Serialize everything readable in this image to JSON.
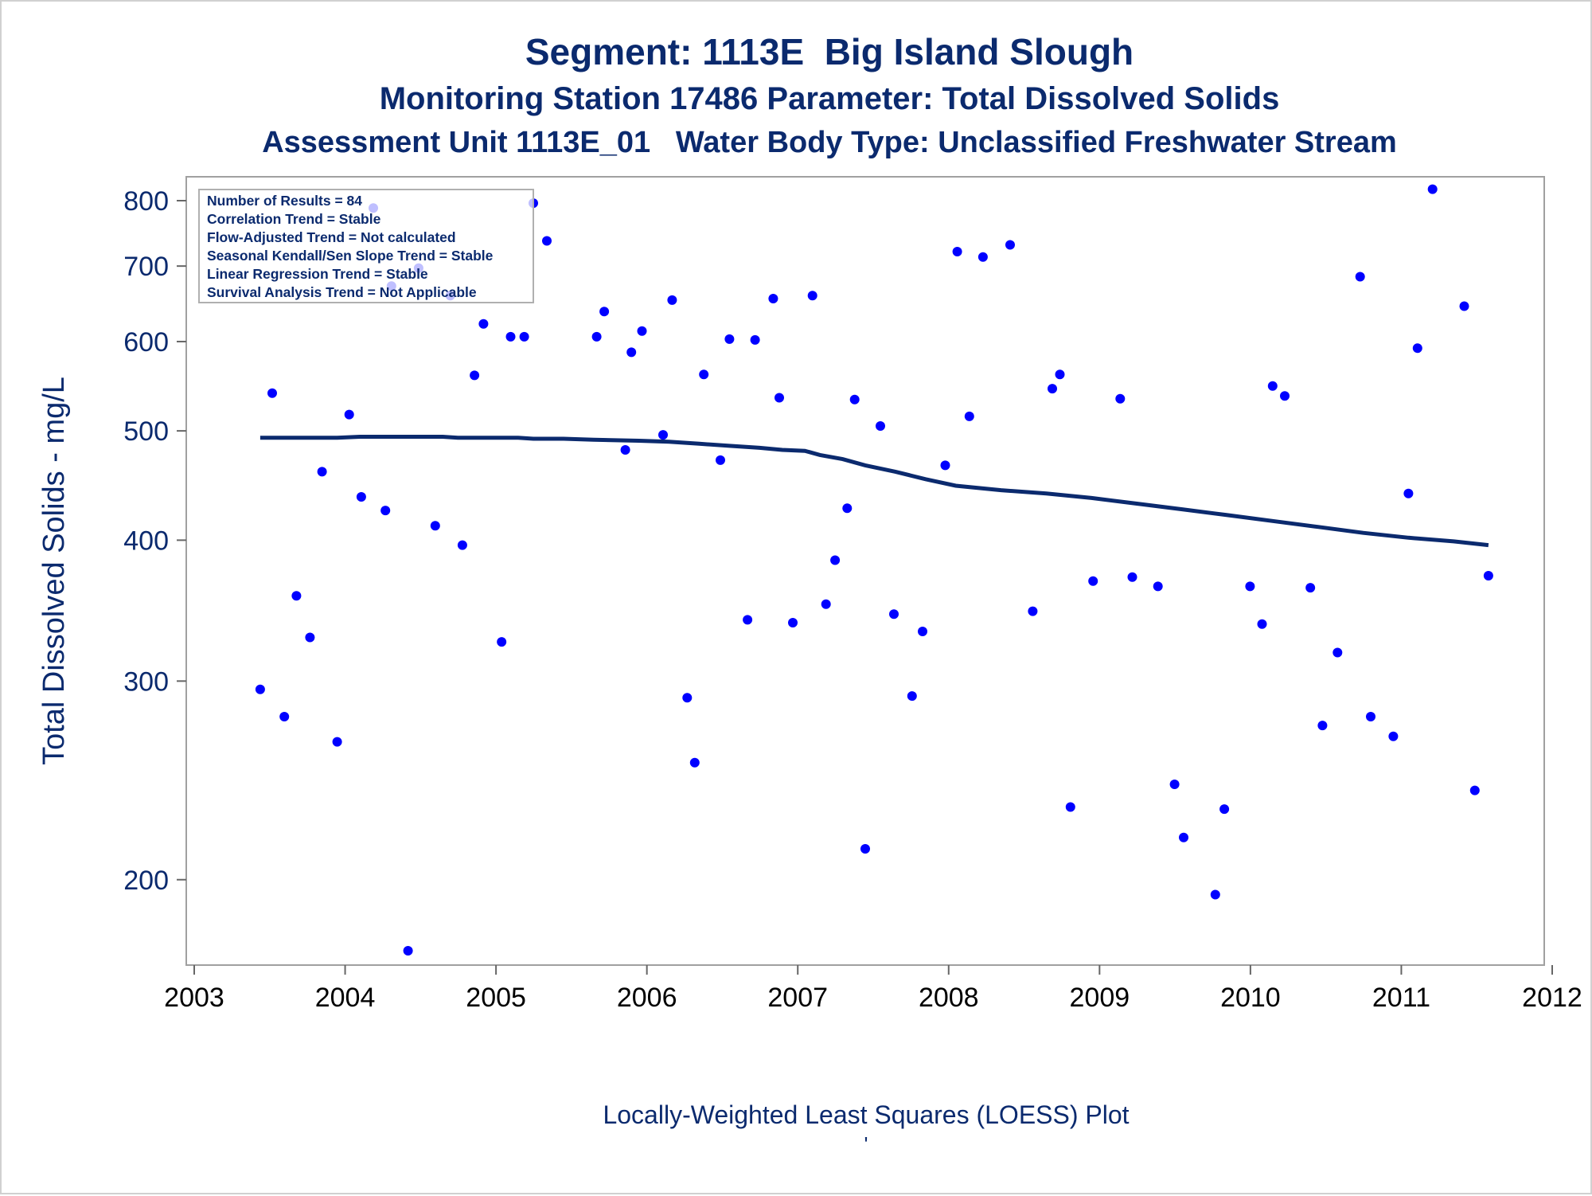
{
  "titles": {
    "line1": "Segment: 1113E  Big Island Slough",
    "line2": "Monitoring Station 17486 Parameter: Total Dissolved Solids",
    "line3": "Assessment Unit 1113E_01   Water Body Type: Unclassified Freshwater Stream"
  },
  "footnote": "Locally-Weighted Least Squares (LOESS) Plot",
  "footnote_mark": "'",
  "colors": {
    "title": "#0b2a6e",
    "points": "#0000ff",
    "loess_line": "#0b2a6e",
    "frame": "#a0a0a0"
  },
  "chart_data": {
    "type": "scatter",
    "xlabel": "",
    "ylabel": "Total Dissolved Solids - mg/L",
    "xlim": [
      2003,
      2012
    ],
    "ylim": [
      168,
      840
    ],
    "yscale": "log",
    "x_ticks": [
      2003,
      2004,
      2005,
      2006,
      2007,
      2008,
      2009,
      2010,
      2011,
      2012
    ],
    "y_ticks": [
      200,
      300,
      400,
      500,
      600,
      700,
      800
    ],
    "grid": false,
    "legend_box": [
      "Number of Results = 84",
      "Correlation Trend = Stable",
      "Flow-Adjusted Trend = Not calculated",
      "Seasonal Kendall/Sen Slope Trend = Stable",
      "Linear Regression Trend = Stable",
      "Survival Analysis Trend = Not Applicable"
    ],
    "legend_box_placement": "top-left",
    "points": [
      [
        2003.49,
        295
      ],
      [
        2003.57,
        540
      ],
      [
        2003.65,
        279
      ],
      [
        2003.73,
        357
      ],
      [
        2003.82,
        328
      ],
      [
        2003.9,
        460
      ],
      [
        2004.0,
        265
      ],
      [
        2004.08,
        517
      ],
      [
        2004.16,
        437
      ],
      [
        2004.24,
        788
      ],
      [
        2004.32,
        425
      ],
      [
        2004.36,
        672
      ],
      [
        2004.47,
        173
      ],
      [
        2004.54,
        697
      ],
      [
        2004.65,
        412
      ],
      [
        2004.75,
        659
      ],
      [
        2004.83,
        396
      ],
      [
        2004.91,
        560
      ],
      [
        2004.97,
        622
      ],
      [
        2005.09,
        325
      ],
      [
        2005.15,
        606
      ],
      [
        2005.24,
        606
      ],
      [
        2005.3,
        796
      ],
      [
        2005.39,
        737
      ],
      [
        2005.72,
        606
      ],
      [
        2005.77,
        638
      ],
      [
        2005.91,
        481
      ],
      [
        2005.95,
        587
      ],
      [
        2006.02,
        613
      ],
      [
        2006.16,
        496
      ],
      [
        2006.22,
        653
      ],
      [
        2006.32,
        290
      ],
      [
        2006.37,
        254
      ],
      [
        2006.43,
        561
      ],
      [
        2006.54,
        471
      ],
      [
        2006.6,
        603
      ],
      [
        2006.72,
        340
      ],
      [
        2006.77,
        602
      ],
      [
        2006.89,
        655
      ],
      [
        2006.93,
        535
      ],
      [
        2007.02,
        338
      ],
      [
        2007.15,
        659
      ],
      [
        2007.24,
        351
      ],
      [
        2007.3,
        384
      ],
      [
        2007.38,
        427
      ],
      [
        2007.43,
        533
      ],
      [
        2007.5,
        213
      ],
      [
        2007.6,
        505
      ],
      [
        2007.69,
        344
      ],
      [
        2007.81,
        291
      ],
      [
        2007.88,
        332
      ],
      [
        2008.03,
        466
      ],
      [
        2008.11,
        721
      ],
      [
        2008.19,
        515
      ],
      [
        2008.28,
        713
      ],
      [
        2008.46,
        731
      ],
      [
        2008.61,
        346
      ],
      [
        2008.74,
        545
      ],
      [
        2008.79,
        561
      ],
      [
        2008.86,
        232
      ],
      [
        2009.01,
        368
      ],
      [
        2009.19,
        534
      ],
      [
        2009.27,
        371
      ],
      [
        2009.44,
        364
      ],
      [
        2009.55,
        243
      ],
      [
        2009.61,
        218
      ],
      [
        2009.82,
        194
      ],
      [
        2009.88,
        231
      ],
      [
        2010.05,
        364
      ],
      [
        2010.13,
        337
      ],
      [
        2010.2,
        548
      ],
      [
        2010.28,
        537
      ],
      [
        2010.45,
        363
      ],
      [
        2010.53,
        274
      ],
      [
        2010.63,
        318
      ],
      [
        2010.78,
        685
      ],
      [
        2010.85,
        279
      ],
      [
        2011.0,
        268
      ],
      [
        2011.1,
        440
      ],
      [
        2011.16,
        592
      ],
      [
        2011.26,
        819
      ],
      [
        2011.47,
        645
      ],
      [
        2011.54,
        240
      ],
      [
        2011.63,
        372
      ]
    ],
    "series": [
      {
        "type": "line",
        "x": [
          2003.49,
          2003.7,
          2004.0,
          2004.15,
          2004.5,
          2004.7,
          2004.8,
          2005.0,
          2005.2,
          2005.3,
          2005.5,
          2005.7,
          2006.0,
          2006.2,
          2006.4,
          2006.6,
          2006.8,
          2006.95,
          2007.1,
          2007.2,
          2007.35,
          2007.5,
          2007.7,
          2007.9,
          2008.1,
          2008.4,
          2008.7,
          2009.0,
          2009.3,
          2009.6,
          2009.9,
          2010.2,
          2010.5,
          2010.8,
          2011.1,
          2011.4,
          2011.63
        ],
        "values": [
          493,
          493,
          493,
          494,
          494,
          494,
          493,
          493,
          493,
          492,
          492,
          491,
          490,
          489,
          487,
          485,
          483,
          481,
          480,
          476,
          472,
          466,
          460,
          453,
          447,
          443,
          440,
          436,
          431,
          426,
          421,
          416,
          411,
          406,
          402,
          399,
          396
        ]
      }
    ]
  }
}
